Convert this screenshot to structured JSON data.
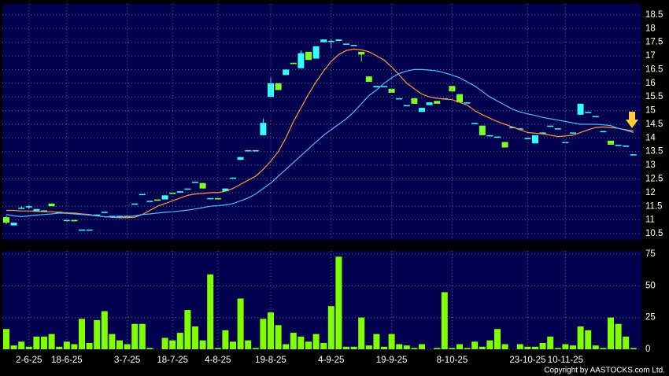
{
  "chart_data": [
    {
      "type": "candlestick",
      "open": [
        11.1,
        10.8,
        11.45,
        11.5,
        11.3,
        11.35,
        11.6,
        11.3,
        11.0,
        11.0,
        10.65,
        10.65,
        11.2,
        11.3,
        11.15,
        11.15,
        11.15,
        11.6,
        11.95,
        11.7,
        11.75,
        11.75,
        12.0,
        12.0,
        12.15,
        12.4,
        12.35,
        11.8,
        11.8,
        12.05,
        12.55,
        13.2,
        13.55,
        13.55,
        14.1,
        15.5,
        16.0,
        16.3,
        16.75,
        16.55,
        17.15,
        16.9,
        17.5,
        17.55,
        17.55,
        17.45,
        17.4,
        17.15,
        16.25,
        15.85,
        15.9,
        15.8,
        15.45,
        15.2,
        15.45,
        14.95,
        15.2,
        15.35,
        15.45,
        15.9,
        15.6,
        15.3,
        14.55,
        14.45,
        14.1,
        14.05,
        13.85,
        14.4,
        14.35,
        14.0,
        13.8,
        14.2,
        14.45,
        14.35,
        13.85,
        14.2,
        14.85,
        14.95,
        14.8,
        14.25,
        13.9,
        13.75,
        13.72,
        13.4
      ],
      "high": [
        11.15,
        10.9,
        11.5,
        11.55,
        11.4,
        11.35,
        11.6,
        11.3,
        11.0,
        11.0,
        10.65,
        10.65,
        11.2,
        11.3,
        11.15,
        11.15,
        11.15,
        11.6,
        11.95,
        11.7,
        11.75,
        11.9,
        12.0,
        12.05,
        12.15,
        12.4,
        12.35,
        11.8,
        11.8,
        12.15,
        12.55,
        13.3,
        13.55,
        13.55,
        14.7,
        16.2,
        16.0,
        16.5,
        16.75,
        17.2,
        17.15,
        17.35,
        17.6,
        17.6,
        17.6,
        17.45,
        17.4,
        17.15,
        16.25,
        15.9,
        15.9,
        15.8,
        15.45,
        15.2,
        15.45,
        15.1,
        15.3,
        15.35,
        15.45,
        15.9,
        15.6,
        15.3,
        14.55,
        14.45,
        14.1,
        14.05,
        13.85,
        14.4,
        14.35,
        14.0,
        14.1,
        14.2,
        14.45,
        14.35,
        13.85,
        14.2,
        15.25,
        14.95,
        14.8,
        14.25,
        13.9,
        13.75,
        13.72,
        13.4
      ],
      "low": [
        10.85,
        10.8,
        11.4,
        11.4,
        11.3,
        11.35,
        11.5,
        11.3,
        11.0,
        10.95,
        10.65,
        10.65,
        11.2,
        11.3,
        11.15,
        11.15,
        11.1,
        11.6,
        11.95,
        11.7,
        11.7,
        11.75,
        11.95,
        12.0,
        12.15,
        12.4,
        12.15,
        11.8,
        11.75,
        12.05,
        12.55,
        13.2,
        13.55,
        13.55,
        14.1,
        15.5,
        15.75,
        16.3,
        16.7,
        16.55,
        16.85,
        16.9,
        17.5,
        17.3,
        17.55,
        17.45,
        17.4,
        16.8,
        16.05,
        15.85,
        15.9,
        15.65,
        15.45,
        15.2,
        15.25,
        14.95,
        15.2,
        15.25,
        15.45,
        15.7,
        15.3,
        15.3,
        14.55,
        14.1,
        14.1,
        14.05,
        13.65,
        14.4,
        14.35,
        14.0,
        13.8,
        14.2,
        14.45,
        14.35,
        13.85,
        14.2,
        14.85,
        14.95,
        14.8,
        14.25,
        13.75,
        13.75,
        13.72,
        13.4
      ],
      "close": [
        10.9,
        10.9,
        11.45,
        11.5,
        11.4,
        11.35,
        11.5,
        11.3,
        11.0,
        10.95,
        10.65,
        10.65,
        11.2,
        11.3,
        11.15,
        11.15,
        11.1,
        11.6,
        11.95,
        11.7,
        11.7,
        11.9,
        11.95,
        12.05,
        12.15,
        12.4,
        12.15,
        11.8,
        11.75,
        12.15,
        12.55,
        13.3,
        13.55,
        13.55,
        14.55,
        16.0,
        15.75,
        16.5,
        16.7,
        17.1,
        16.85,
        17.35,
        17.6,
        17.55,
        17.6,
        17.45,
        17.4,
        17.05,
        16.05,
        15.9,
        15.9,
        15.65,
        15.45,
        15.2,
        15.25,
        15.1,
        15.3,
        15.25,
        15.45,
        15.7,
        15.3,
        15.3,
        14.55,
        14.1,
        14.1,
        14.05,
        13.65,
        14.4,
        14.35,
        14.0,
        14.1,
        14.2,
        14.45,
        14.35,
        13.85,
        14.2,
        15.25,
        14.95,
        14.8,
        14.25,
        13.75,
        13.75,
        13.72,
        13.4
      ],
      "up_color": "#33ffff",
      "down_color": "#7fff2a",
      "series": [
        {
          "color": "#ff9a3c",
          "values": [
            11.35,
            11.35,
            11.33,
            11.33,
            11.32,
            11.3,
            11.3,
            11.28,
            11.26,
            11.25,
            11.22,
            11.2,
            11.15,
            11.12,
            11.1,
            11.08,
            11.08,
            11.1,
            11.2,
            11.35,
            11.5,
            11.6,
            11.7,
            11.8,
            11.9,
            11.95,
            11.97,
            12.0,
            12.0,
            12.05,
            12.15,
            12.3,
            12.45,
            12.6,
            12.85,
            13.15,
            13.5,
            14.0,
            14.6,
            15.1,
            15.6,
            16.05,
            16.45,
            16.8,
            17.05,
            17.2,
            17.25,
            17.22,
            17.15,
            17.0,
            16.85,
            16.6,
            16.3,
            16.0,
            15.8,
            15.6,
            15.5,
            15.45,
            15.42,
            15.4,
            15.3,
            15.2,
            15.0,
            14.85,
            14.72,
            14.6,
            14.5,
            14.4,
            14.3,
            14.2,
            14.17,
            14.15,
            14.1,
            14.05,
            14.07,
            14.1,
            14.2,
            14.3,
            14.38,
            14.4,
            14.38,
            14.35,
            14.3,
            14.25
          ]
        },
        {
          "color": "#55bbff",
          "values": [
            11.2,
            11.15,
            11.12,
            11.15,
            11.18,
            11.2,
            11.22,
            11.25,
            11.24,
            11.22,
            11.2,
            11.18,
            11.15,
            11.12,
            11.1,
            11.1,
            11.12,
            11.15,
            11.2,
            11.22,
            11.25,
            11.28,
            11.3,
            11.33,
            11.36,
            11.4,
            11.45,
            11.5,
            11.52,
            11.55,
            11.6,
            11.7,
            11.8,
            11.95,
            12.15,
            12.35,
            12.6,
            12.85,
            13.1,
            13.35,
            13.6,
            13.85,
            14.1,
            14.3,
            14.5,
            14.7,
            14.95,
            15.25,
            15.55,
            15.75,
            16.0,
            16.2,
            16.35,
            16.45,
            16.5,
            16.5,
            16.48,
            16.45,
            16.38,
            16.3,
            16.2,
            16.05,
            15.9,
            15.7,
            15.5,
            15.35,
            15.2,
            15.05,
            14.95,
            14.88,
            14.82,
            14.75,
            14.7,
            14.65,
            14.6,
            14.55,
            14.5,
            14.5,
            14.5,
            14.48,
            14.45,
            14.35,
            14.28,
            14.2
          ]
        }
      ],
      "ylim": [
        10.27,
        18.9
      ],
      "yticks": [
        10.5,
        11,
        11.5,
        12,
        12.5,
        13,
        13.5,
        14,
        14.5,
        15,
        15.5,
        16,
        16.5,
        17,
        17.5,
        18,
        18.5
      ],
      "grid": true
    },
    {
      "type": "bar",
      "categories": [
        null,
        null,
        null,
        "2-6-25",
        null,
        null,
        null,
        null,
        "18-6-25",
        null,
        null,
        null,
        null,
        null,
        null,
        null,
        "3-7-25",
        null,
        null,
        null,
        null,
        null,
        "18-7-25",
        null,
        null,
        null,
        null,
        null,
        "4-8-25",
        null,
        null,
        null,
        null,
        null,
        null,
        "19-8-25",
        null,
        null,
        null,
        null,
        null,
        null,
        null,
        "4-9-25",
        null,
        null,
        null,
        null,
        null,
        null,
        null,
        "19-9-25",
        null,
        null,
        null,
        null,
        null,
        null,
        null,
        "8-10-25",
        null,
        null,
        null,
        null,
        null,
        null,
        null,
        null,
        null,
        "23-10-25",
        null,
        null,
        null,
        null,
        "10-11-25",
        null,
        null,
        null,
        null,
        null,
        null,
        null,
        null,
        null
      ],
      "values": [
        16,
        3,
        6,
        2,
        10,
        10,
        12,
        2,
        6,
        4,
        24,
        5,
        23,
        30,
        12,
        7,
        4,
        20,
        20,
        1,
        0,
        9,
        7,
        13,
        31,
        18,
        7,
        59,
        1,
        15,
        6,
        40,
        7,
        1,
        24,
        29,
        19,
        4,
        13,
        10,
        6,
        12,
        5,
        34,
        73,
        2,
        2,
        25,
        3,
        12,
        2,
        12,
        4,
        3,
        1,
        4,
        0,
        1,
        45,
        1,
        4,
        1,
        6,
        2,
        7,
        16,
        4,
        0,
        4,
        2,
        2,
        5,
        10,
        1,
        4,
        3,
        18,
        15,
        3,
        1,
        25,
        20,
        10,
        1
      ],
      "color": "#7fff00",
      "ylim": [
        0,
        77.5
      ],
      "yticks": [
        0,
        25,
        50,
        75
      ],
      "grid": true
    }
  ],
  "copyright": "Copyright by AASTOCKS.com Ltd."
}
